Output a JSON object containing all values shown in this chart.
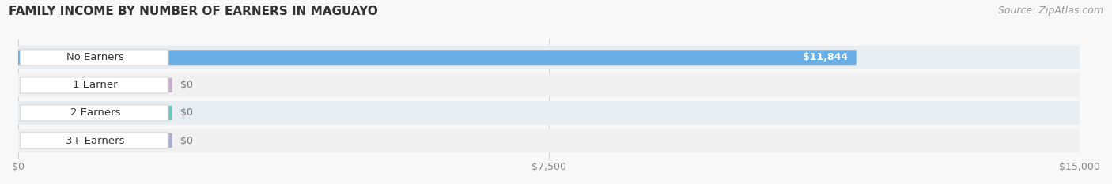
{
  "title": "FAMILY INCOME BY NUMBER OF EARNERS IN MAGUAYO",
  "source": "Source: ZipAtlas.com",
  "categories": [
    "No Earners",
    "1 Earner",
    "2 Earners",
    "3+ Earners"
  ],
  "values": [
    11844,
    0,
    0,
    0
  ],
  "bar_colors": [
    "#6aaee8",
    "#c4a0cc",
    "#5dbfb5",
    "#a0a0cc"
  ],
  "xlim": [
    0,
    15000
  ],
  "xticks": [
    0,
    7500,
    15000
  ],
  "xticklabels": [
    "$0",
    "$7,500",
    "$15,000"
  ],
  "value_labels": [
    "$11,844",
    "$0",
    "$0",
    "$0"
  ],
  "row_colors": [
    "#e8edf2",
    "#f0f0f0",
    "#e8edf2",
    "#f0f0f0"
  ],
  "bar_height": 0.62,
  "title_fontsize": 11,
  "source_fontsize": 9,
  "label_fontsize": 9.5,
  "value_fontsize": 9
}
